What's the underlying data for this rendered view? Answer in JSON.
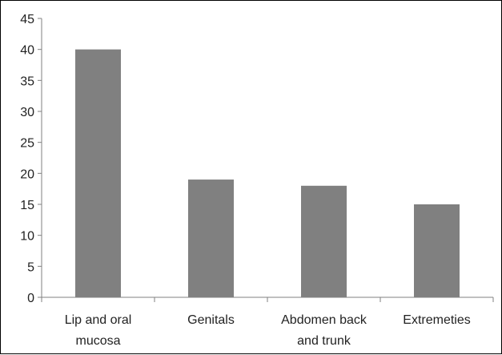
{
  "chart_data": {
    "type": "bar",
    "categories": [
      [
        "Lip and oral",
        "mucosa"
      ],
      [
        "Genitals"
      ],
      [
        "Abdomen back",
        "and trunk"
      ],
      [
        "Extremeties"
      ]
    ],
    "values": [
      40,
      19,
      18,
      15
    ],
    "ylim": [
      0,
      45
    ],
    "yticks": [
      0,
      5,
      10,
      15,
      20,
      25,
      30,
      35,
      40,
      45
    ],
    "title": "",
    "xlabel": "",
    "ylabel": "",
    "grid": false,
    "legend": "none",
    "colors": {
      "bar": "#808080",
      "axis": "#808080",
      "text": "#222222"
    }
  }
}
